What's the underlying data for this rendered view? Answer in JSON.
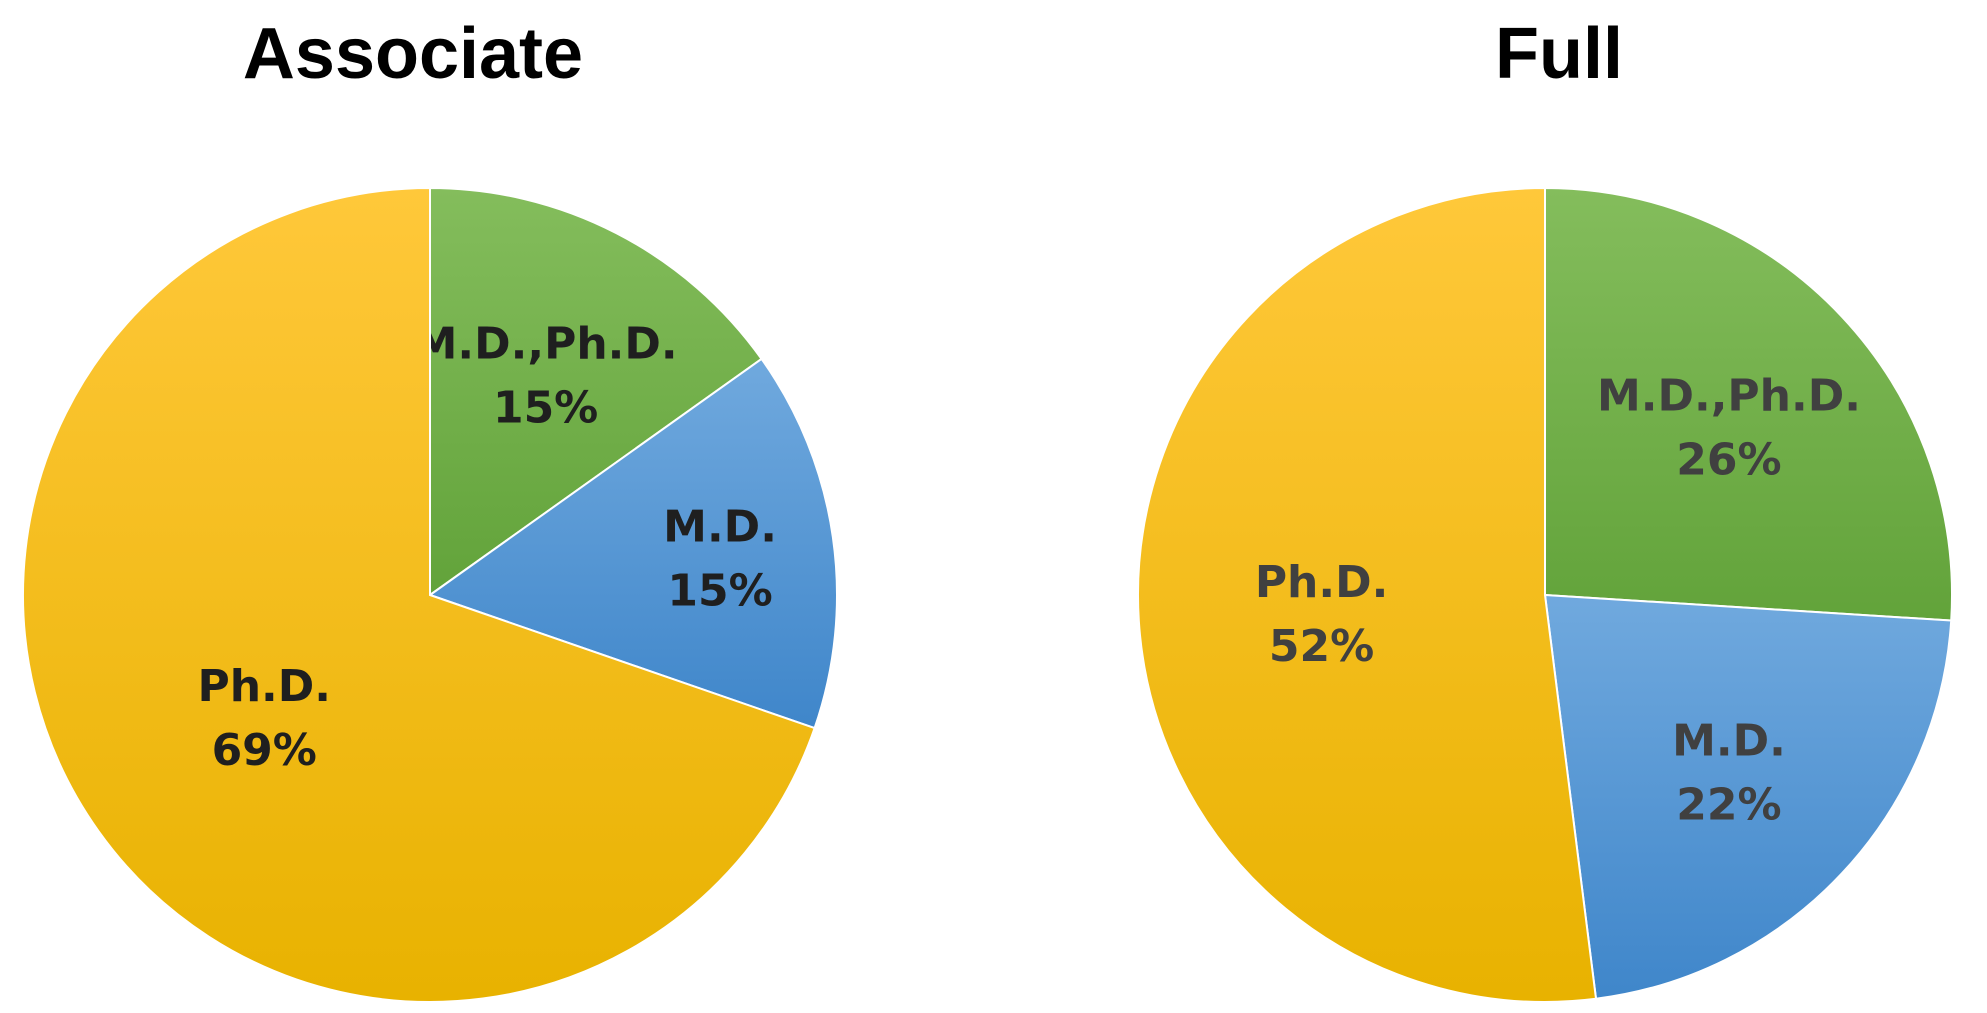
{
  "chart_data": [
    {
      "type": "pie",
      "title": "Associate",
      "label_color": "#1f1f1f",
      "slices": [
        {
          "name": "M.D.,Ph.D.",
          "value": 15,
          "pct": "15%",
          "color": "#70ad47"
        },
        {
          "name": "M.D.",
          "value": 15,
          "pct": "15%",
          "color": "#5b9bd5"
        },
        {
          "name": "Ph.D.",
          "value": 69,
          "pct": "69%",
          "color": "#ffc000"
        }
      ]
    },
    {
      "type": "pie",
      "title": "Full",
      "label_color": "#404040",
      "slices": [
        {
          "name": "M.D.,Ph.D.",
          "value": 26,
          "pct": "26%",
          "color": "#70ad47"
        },
        {
          "name": "M.D.",
          "value": 22,
          "pct": "22%",
          "color": "#5b9bd5"
        },
        {
          "name": "Ph.D.",
          "value": 52,
          "pct": "52%",
          "color": "#ffc000"
        }
      ]
    }
  ]
}
